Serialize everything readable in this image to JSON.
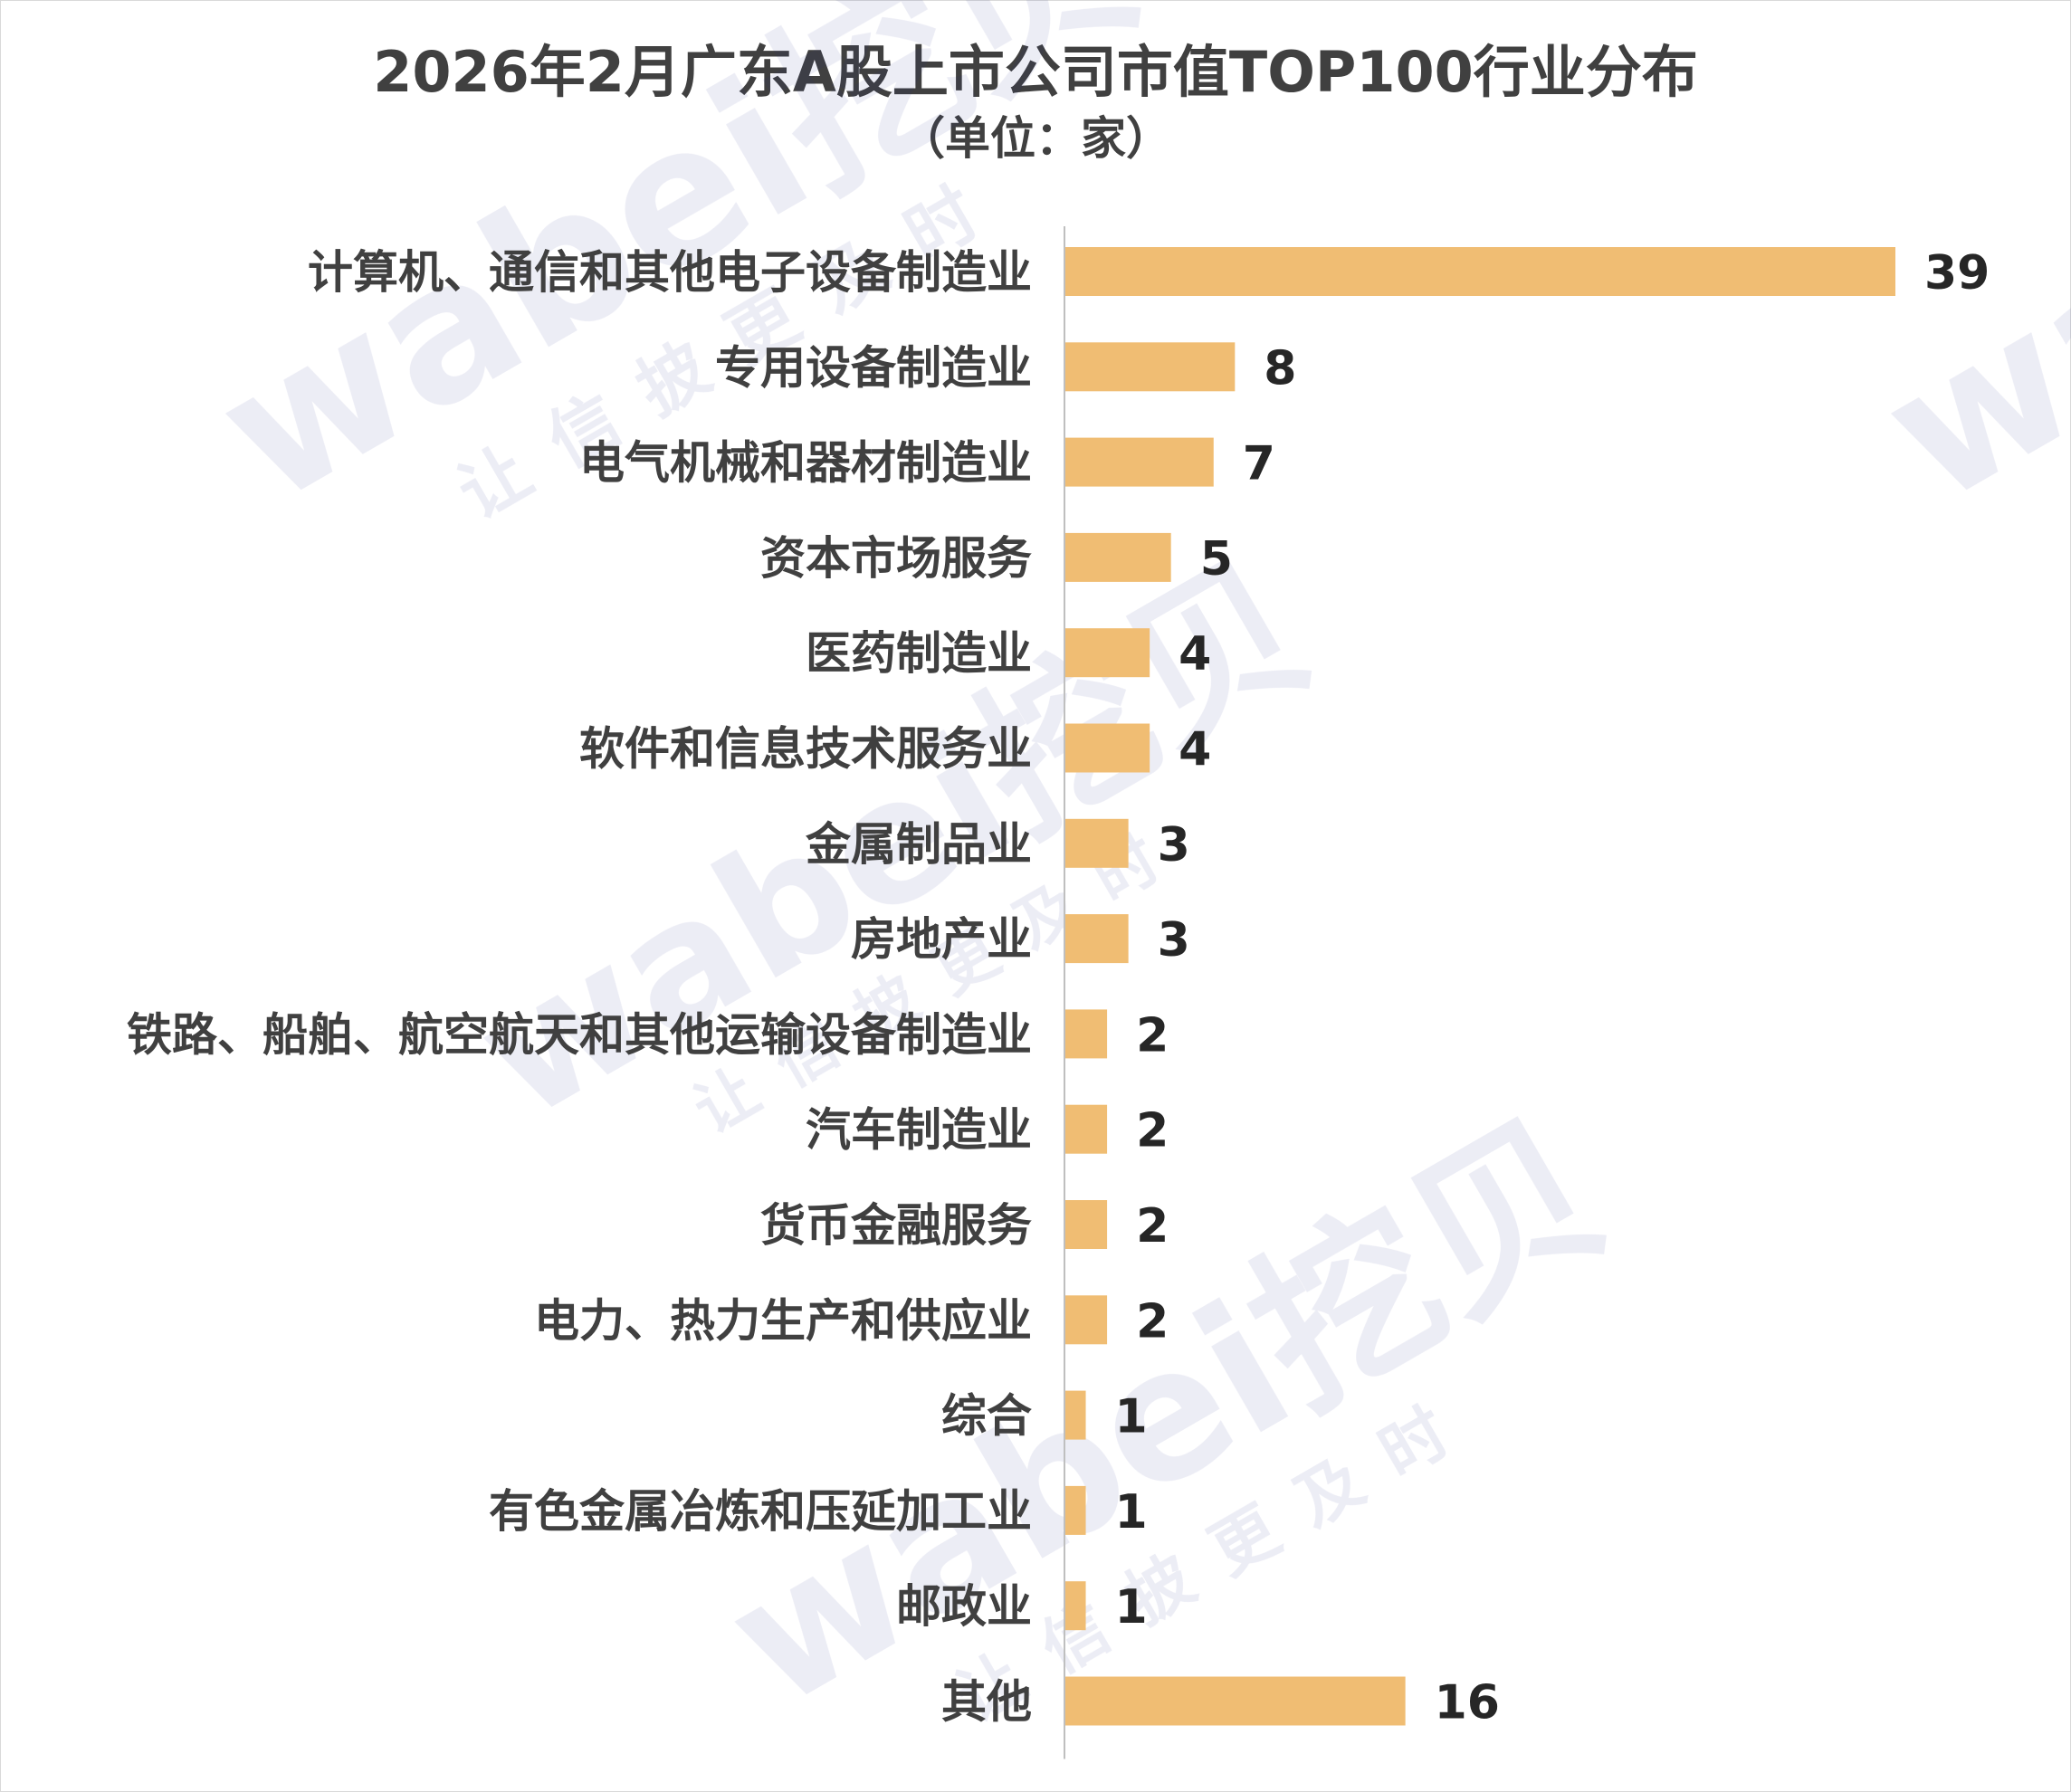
{
  "title": "2026年2月广东A股上市公司市值TOP100行业分布",
  "subtitle": "（单位：家）",
  "watermark": {
    "brand": "wabei挖贝",
    "slogan": "让信披更及时"
  },
  "colors": {
    "bar": "#F0BD73",
    "axis": "#bfbfbf",
    "text": "#404040"
  },
  "chart_data": {
    "type": "bar",
    "orientation": "horizontal",
    "categories": [
      "计算机、通信和其他电子设备制造业",
      "专用设备制造业",
      "电气机械和器材制造业",
      "资本市场服务",
      "医药制造业",
      "软件和信息技术服务业",
      "金属制品业",
      "房地产业",
      "铁路、船舶、航空航天和其他运输设备制造业",
      "汽车制造业",
      "货币金融服务",
      "电力、热力生产和供应业",
      "综合",
      "有色金属冶炼和压延加工业",
      "邮政业",
      "其他"
    ],
    "values": [
      39,
      8,
      7,
      5,
      4,
      4,
      3,
      3,
      2,
      2,
      2,
      2,
      1,
      1,
      1,
      16
    ],
    "xlim": [
      0,
      39
    ],
    "grid": false,
    "legend": "none",
    "data_labels": true
  }
}
